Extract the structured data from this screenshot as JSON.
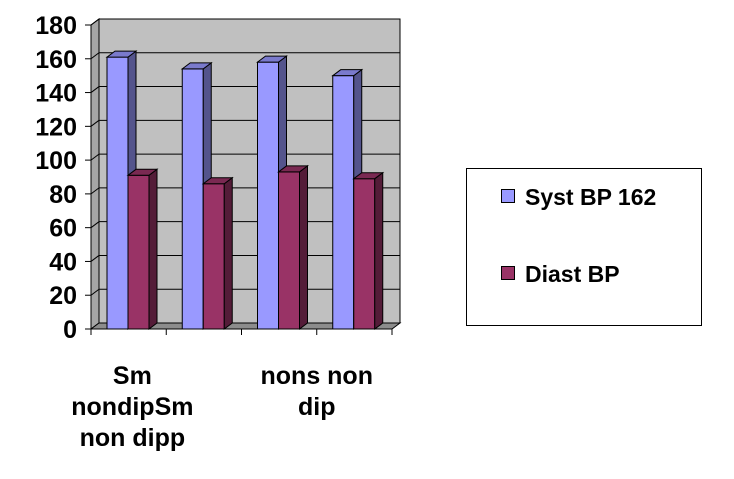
{
  "chart_data": {
    "type": "bar",
    "categories": [
      "Sm nondipSm non dipp",
      "",
      "nons non dip",
      ""
    ],
    "series": [
      {
        "name": "Syst BP 162",
        "values": [
          161,
          154,
          158,
          150
        ],
        "color": "#9999ff"
      },
      {
        "name": "Diast BP",
        "values": [
          91,
          86,
          93,
          89
        ],
        "color": "#993366"
      }
    ],
    "ylim": [
      0,
      180
    ],
    "yticks": [
      "0",
      "20",
      "40",
      "60",
      "80",
      "100",
      "120",
      "140",
      "160",
      "180"
    ],
    "x_label_lines": [
      [
        "Sm",
        "nondipSm",
        "non dipp"
      ],
      [
        "nons non",
        "dip"
      ]
    ],
    "grid": true,
    "legend_position": "right",
    "plot_wall_color": "#c0c0c0"
  }
}
